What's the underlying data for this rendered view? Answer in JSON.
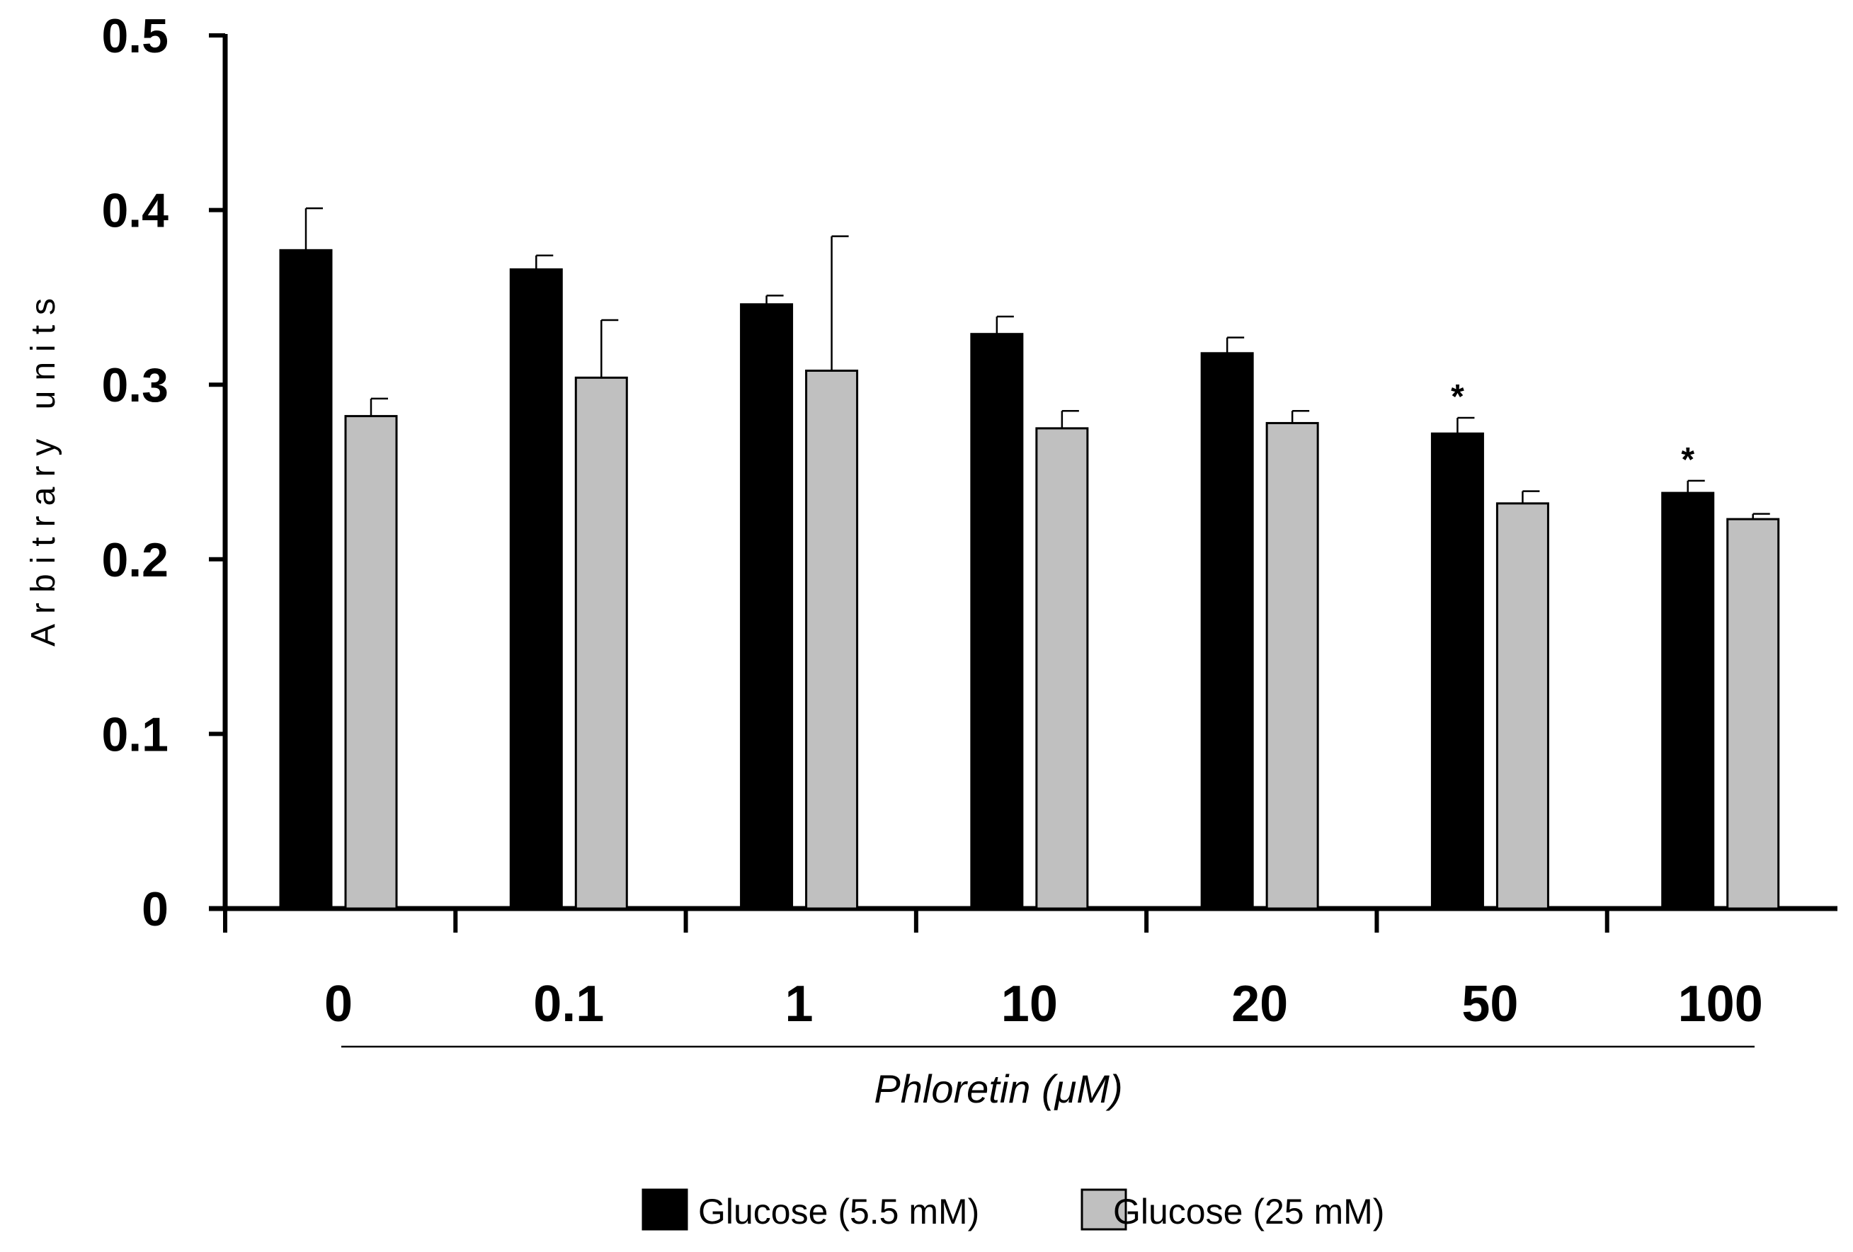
{
  "chart_data": {
    "type": "bar",
    "title": "",
    "ylabel": "Arbitrary units",
    "xlabel": "Phloretin (μM)",
    "ylim": [
      0,
      0.5
    ],
    "yticks": [
      0,
      0.1,
      0.2,
      0.3,
      0.4,
      0.5
    ],
    "ytick_labels": [
      "0",
      "0.1",
      "0.2",
      "0.3",
      "0.4",
      "0.5"
    ],
    "categories": [
      "0",
      "0.1",
      "1",
      "10",
      "20",
      "50",
      "100"
    ],
    "series": [
      {
        "name": "Glucose (5.5 mM)",
        "color": "#000000",
        "values": [
          0.377,
          0.366,
          0.346,
          0.329,
          0.318,
          0.272,
          0.238
        ],
        "errors": [
          0.024,
          0.008,
          0.005,
          0.01,
          0.009,
          0.009,
          0.007
        ],
        "significance": [
          "",
          "",
          "",
          "",
          "",
          "*",
          "*"
        ]
      },
      {
        "name": "Glucose (25 mM)",
        "color": "#c0c0c0",
        "values": [
          0.282,
          0.304,
          0.308,
          0.275,
          0.278,
          0.232,
          0.223
        ],
        "errors": [
          0.01,
          0.033,
          0.077,
          0.01,
          0.007,
          0.007,
          0.003
        ],
        "significance": [
          "",
          "",
          "",
          "",
          "",
          "",
          ""
        ]
      }
    ],
    "grid": false,
    "legend_position": "bottom-center"
  }
}
